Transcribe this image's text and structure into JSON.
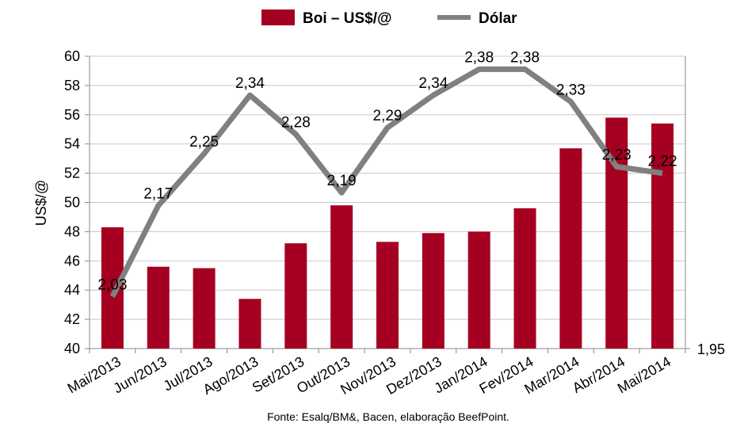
{
  "chart_data": {
    "type": "bar",
    "categories": [
      "Mai/2013",
      "Jun/2013",
      "Jul/2013",
      "Ago/2013",
      "Set/2013",
      "Out/2013",
      "Nov/2013",
      "Dez/2013",
      "Jan/2014",
      "Fev/2014",
      "Mar/2014",
      "Abr/2014",
      "Mai/2014"
    ],
    "series": [
      {
        "name": "Boi – US$/@",
        "kind": "bar",
        "axis": "left",
        "color": "#A50021",
        "values": [
          48.3,
          45.6,
          45.5,
          43.4,
          47.2,
          49.8,
          47.3,
          47.9,
          48.0,
          49.6,
          53.7,
          55.8,
          55.4
        ]
      },
      {
        "name": "Dólar",
        "kind": "line",
        "axis": "right",
        "color": "#808080",
        "values": [
          2.03,
          2.17,
          2.25,
          2.34,
          2.28,
          2.19,
          2.29,
          2.34,
          2.38,
          2.38,
          2.33,
          2.23,
          2.22
        ],
        "labels": [
          "2,03",
          "2,17",
          "2,25",
          "2,34",
          "2,28",
          "2,19",
          "2,29",
          "2,34",
          "2,38",
          "2,38",
          "2,33",
          "2,23",
          "2,22"
        ]
      }
    ],
    "ylabel": "US$/@",
    "ylim": [
      40,
      60
    ],
    "yticks": [
      "40",
      "42",
      "44",
      "46",
      "48",
      "50",
      "52",
      "54",
      "56",
      "58",
      "60"
    ],
    "y2lim": [
      1.95,
      2.4
    ],
    "y2ticks": [
      "1,95"
    ],
    "grid": true,
    "legend": "top-center",
    "source": "Fonte: Esalq/BM&, Bacen, elaboração BeefPoint."
  }
}
